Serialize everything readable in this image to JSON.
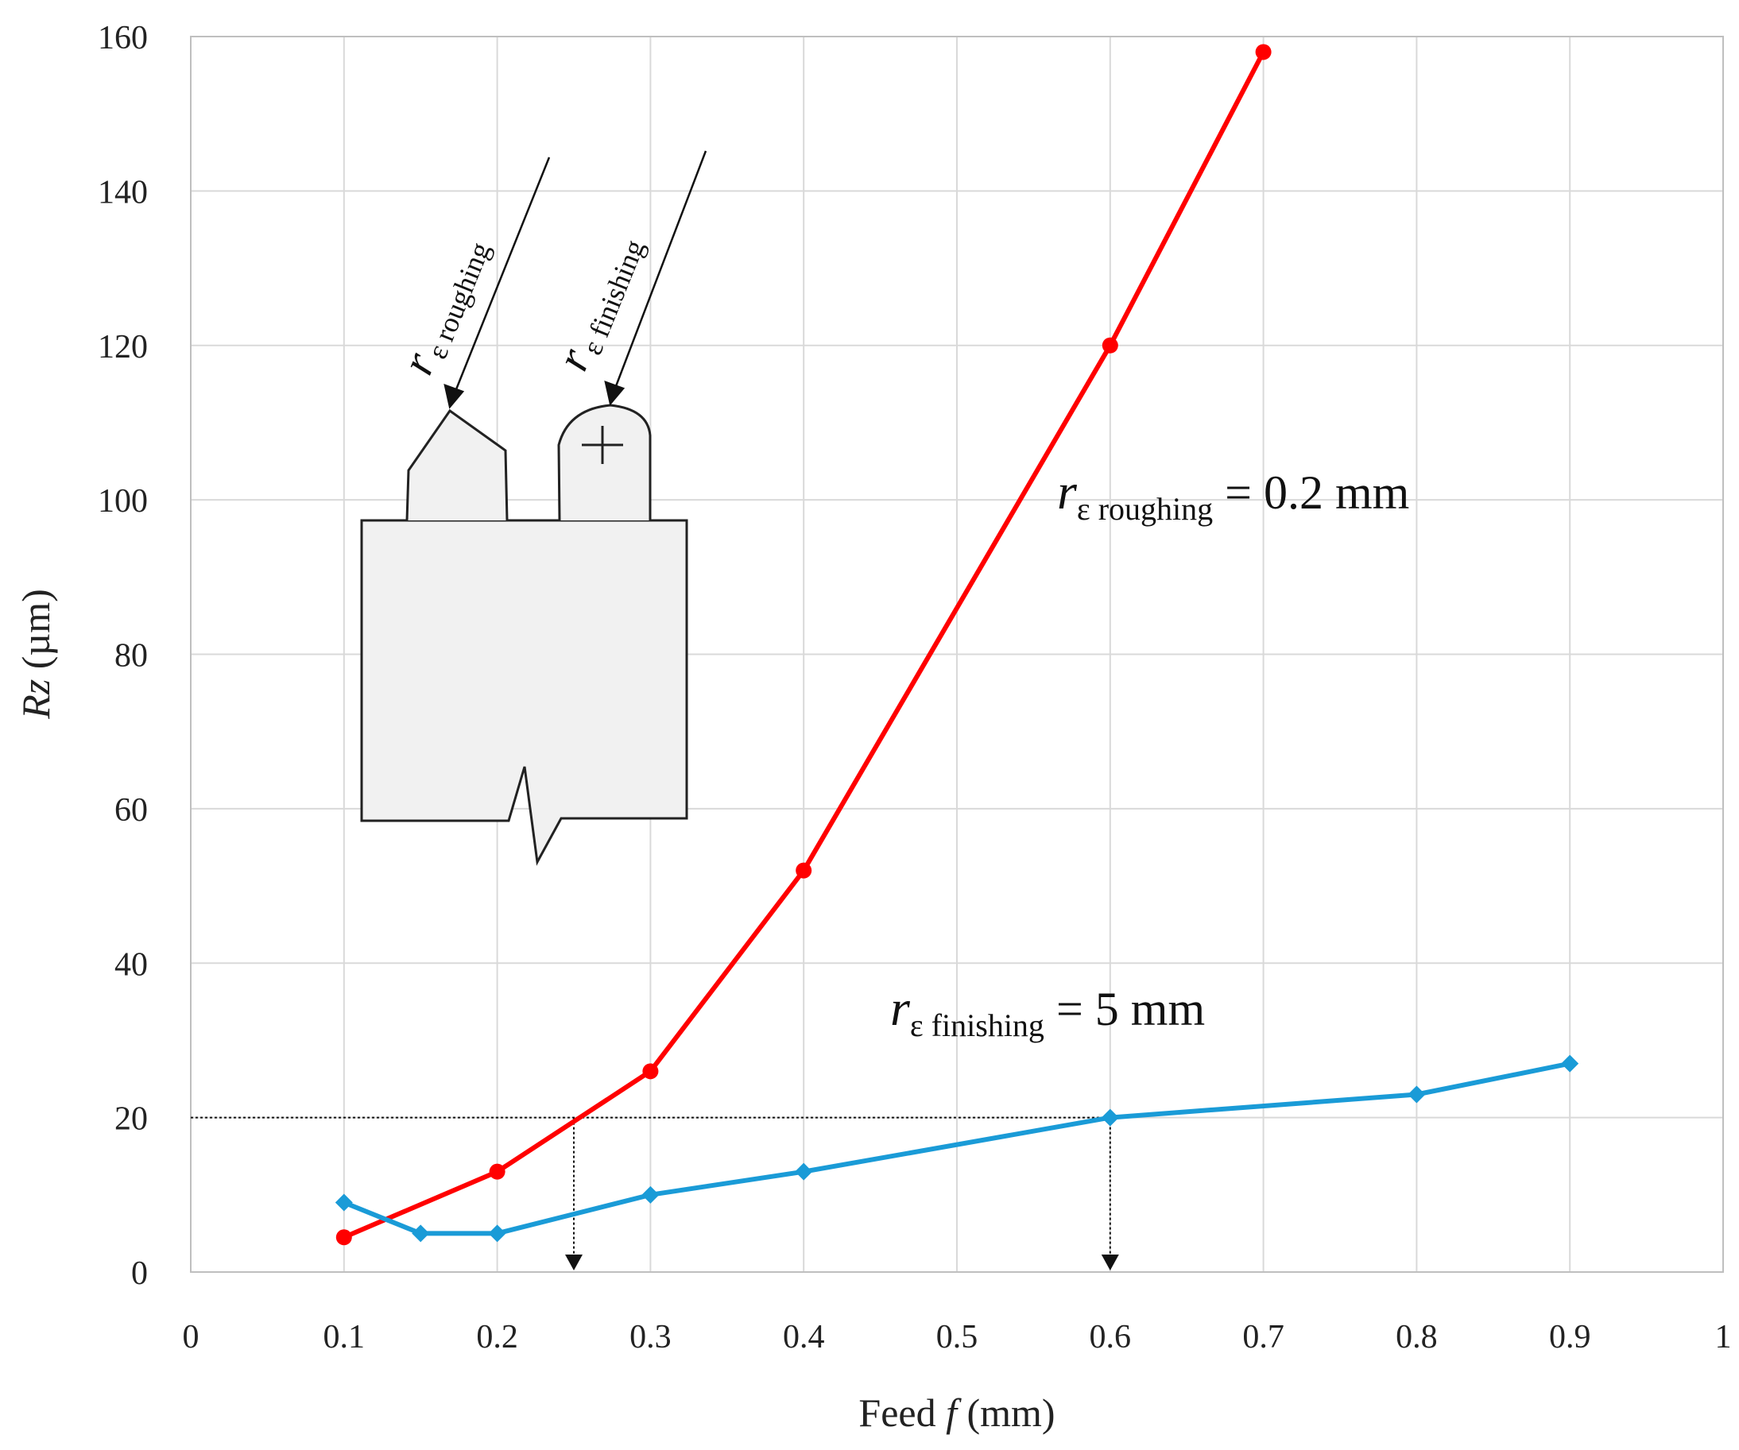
{
  "chart_data": {
    "type": "line",
    "xlabel": {
      "prefix": "Feed ",
      "var": "f",
      "unit": " (mm)"
    },
    "ylabel": {
      "var": "Rz",
      "unit": " (µm)"
    },
    "xlim": [
      0,
      1
    ],
    "ylim": [
      0,
      160
    ],
    "x_ticks": [
      "0",
      "0.1",
      "0.2",
      "0.3",
      "0.4",
      "0.5",
      "0.6",
      "0.7",
      "0.8",
      "0.9",
      "1"
    ],
    "y_ticks": [
      "0",
      "20",
      "40",
      "60",
      "80",
      "100",
      "120",
      "140",
      "160"
    ],
    "grid": true,
    "series": [
      {
        "color": "#ff0000",
        "marker": "circle",
        "x": [
          0.1,
          0.2,
          0.3,
          0.4,
          0.6,
          0.7
        ],
        "y": [
          4.5,
          13,
          26,
          52,
          120,
          158
        ]
      },
      {
        "color": "#1a9bd7",
        "marker": "diamond",
        "x": [
          0.1,
          0.15,
          0.2,
          0.3,
          0.4,
          0.6,
          0.8,
          0.9
        ],
        "y": [
          9,
          5,
          5,
          10,
          13,
          20,
          23,
          27
        ]
      }
    ],
    "reference": {
      "y": 20,
      "x_drops": [
        0.25,
        0.6
      ]
    },
    "annotations": {
      "roughing": {
        "symbol": "r",
        "sub": "ε roughing",
        "value": " = 0.2 mm"
      },
      "finishing": {
        "symbol": "r",
        "sub": "ε finishing",
        "value": " = 5 mm"
      },
      "inset_roughing": {
        "symbol": "r",
        "sub": "ε roughing"
      },
      "inset_finishing": {
        "symbol": "r",
        "sub": "ε finishing"
      }
    }
  }
}
